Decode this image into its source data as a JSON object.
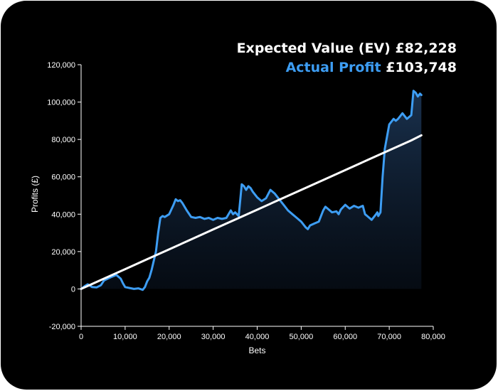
{
  "legend": {
    "ev_label": "Expected Value (EV)",
    "ev_value": "£82,228",
    "actual_label": "Actual Profit",
    "actual_value": "£103,748"
  },
  "colors": {
    "background": "#000000",
    "actual": "#3d9df3",
    "expected": "#ffffff",
    "axis": "#ffffff"
  },
  "chart_data": {
    "type": "line",
    "title": "",
    "xlabel": "Bets",
    "ylabel": "Profits (£)",
    "xlim": [
      0,
      80000
    ],
    "ylim": [
      -20000,
      120000
    ],
    "x_ticks": [
      0,
      10000,
      20000,
      30000,
      40000,
      50000,
      60000,
      70000,
      80000
    ],
    "x_tick_labels": [
      "0",
      "10,000",
      "20,000",
      "30,000",
      "40,000",
      "50,000",
      "60,000",
      "70,000",
      "80,000"
    ],
    "y_ticks": [
      -20000,
      0,
      20000,
      40000,
      60000,
      80000,
      100000,
      120000
    ],
    "y_tick_labels": [
      "-20,000",
      "0",
      "20,000",
      "40,000",
      "60,000",
      "80,000",
      "100,000",
      "120,000"
    ],
    "grid": false,
    "series": [
      {
        "name": "Expected Value (EV)",
        "color": "#ffffff",
        "x": [
          0,
          5000,
          10000,
          15000,
          20000,
          25000,
          30000,
          35000,
          40000,
          45000,
          50000,
          55000,
          60000,
          65000,
          70000,
          75000,
          77300
        ],
        "y": [
          0,
          5300,
          10600,
          15900,
          21200,
          26500,
          31800,
          37100,
          42400,
          47700,
          53000,
          58300,
          63600,
          68900,
          74200,
          79500,
          82228
        ]
      },
      {
        "name": "Actual Profit",
        "color": "#3d9df3",
        "fill": "gradient",
        "x": [
          0,
          800,
          1500,
          2500,
          3500,
          4500,
          5200,
          6000,
          7000,
          8000,
          9000,
          9500,
          10000,
          11000,
          12000,
          13000,
          14000,
          14500,
          15000,
          15500,
          16000,
          16500,
          17000,
          17500,
          18000,
          18500,
          19000,
          20000,
          21000,
          21500,
          22000,
          22500,
          23000,
          24000,
          25000,
          26000,
          27000,
          28000,
          29000,
          30000,
          31000,
          32000,
          33000,
          34000,
          34500,
          35000,
          35800,
          36000,
          36500,
          37000,
          37500,
          38000,
          38500,
          39000,
          40000,
          41000,
          42000,
          43000,
          44000,
          45000,
          46000,
          47000,
          48000,
          49000,
          50000,
          51000,
          51500,
          52000,
          53000,
          54000,
          55000,
          55500,
          56000,
          57000,
          58000,
          58500,
          59000,
          60000,
          61000,
          62000,
          63000,
          64000,
          64500,
          65000,
          66000,
          67000,
          67300,
          67500,
          68000,
          68500,
          69000,
          70000,
          71000,
          71500,
          72000,
          72500,
          73000,
          74000,
          74500,
          75000,
          75500,
          76000,
          76500,
          77000,
          77300
        ],
        "y": [
          0,
          1500,
          2500,
          1000,
          800,
          2000,
          4500,
          5500,
          6500,
          7500,
          5500,
          3000,
          1000,
          500,
          0,
          300,
          -500,
          1000,
          4000,
          6000,
          10000,
          15000,
          20000,
          30000,
          38000,
          39000,
          38500,
          40000,
          45000,
          48000,
          47000,
          47500,
          46000,
          42000,
          38500,
          38000,
          38500,
          37500,
          38000,
          37000,
          38000,
          37500,
          38000,
          42000,
          40000,
          41000,
          39000,
          44000,
          56000,
          55000,
          53000,
          55000,
          54000,
          52000,
          49000,
          47000,
          48500,
          53000,
          51000,
          48000,
          45000,
          42000,
          40000,
          38000,
          36000,
          33000,
          32000,
          34000,
          35000,
          36000,
          42000,
          44000,
          43000,
          41000,
          41500,
          40000,
          42500,
          45000,
          43000,
          44500,
          43500,
          44500,
          40000,
          39000,
          37000,
          40000,
          41000,
          39000,
          41000,
          60000,
          75000,
          88000,
          91000,
          90000,
          91000,
          92500,
          94000,
          91000,
          92000,
          93000,
          106000,
          105000,
          103000,
          104500,
          103748
        ]
      }
    ]
  }
}
